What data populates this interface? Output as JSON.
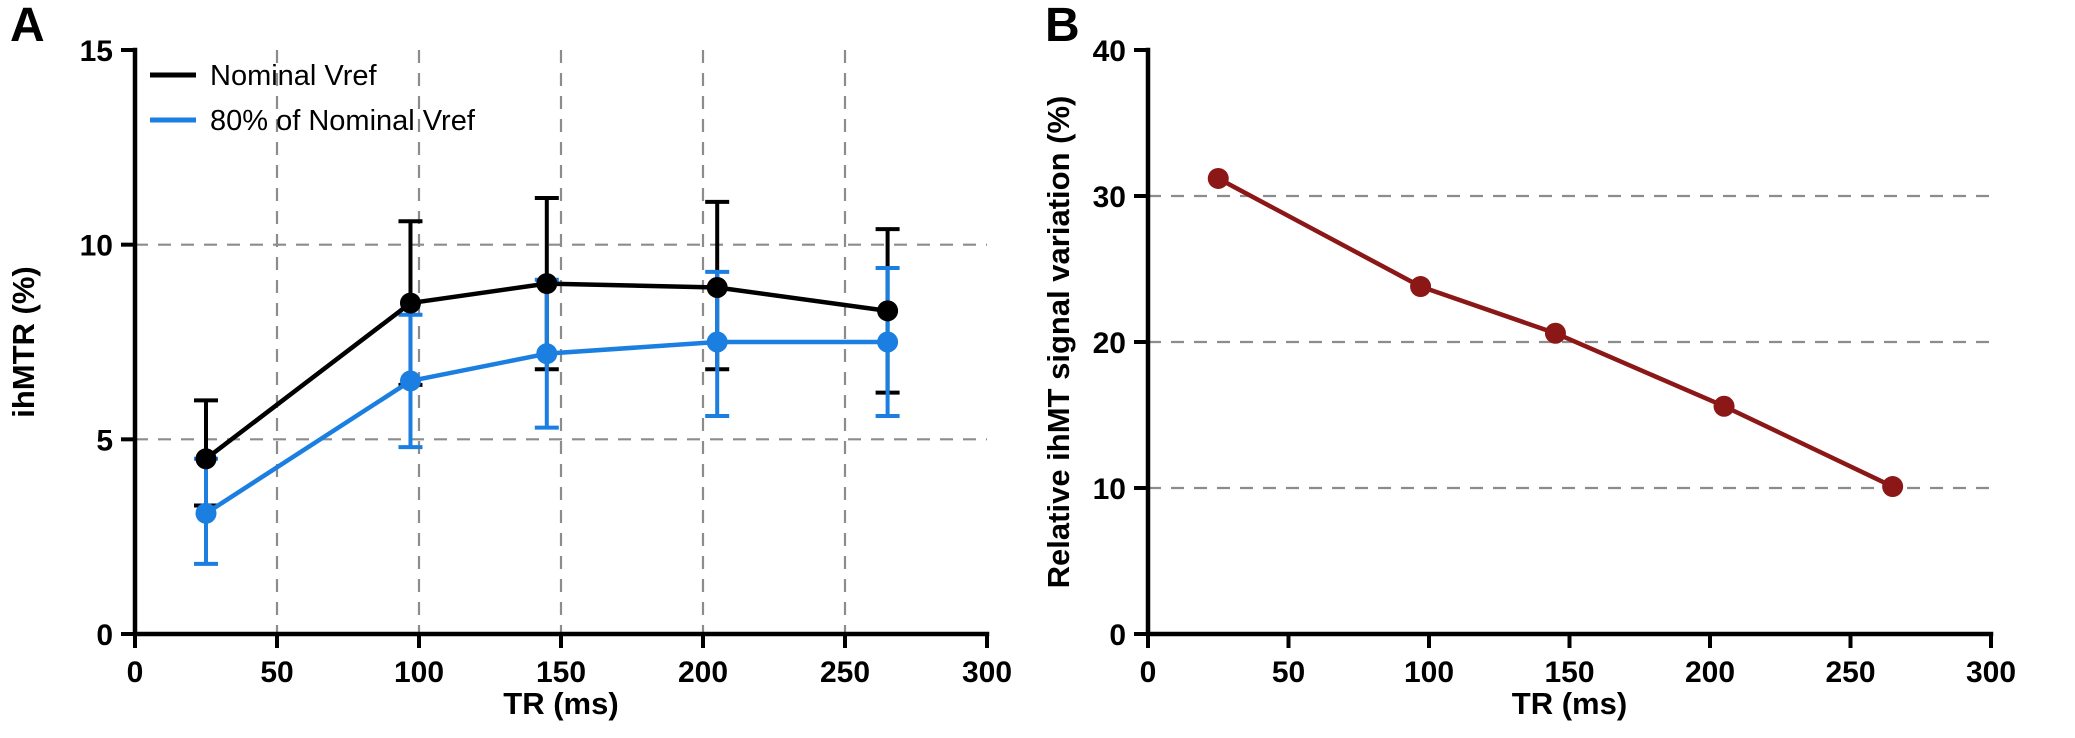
{
  "panels": [
    {
      "label": "A"
    },
    {
      "label": "B"
    }
  ],
  "colors": {
    "black_series": "#000000",
    "blue_series": "#1a7fe0",
    "dark_red_series": "#8b1717",
    "gridline": "#8c8c8c",
    "background": "#ffffff"
  },
  "chart_data": [
    {
      "type": "line",
      "title": "",
      "xlabel": "TR (ms)",
      "ylabel": "ihMTR (%)",
      "xlim": [
        0,
        300
      ],
      "ylim": [
        0,
        15
      ],
      "xticks": [
        0,
        50,
        100,
        150,
        200,
        250,
        300
      ],
      "yticks": [
        0,
        5,
        10,
        15
      ],
      "x_gridlines": [
        50,
        100,
        150,
        200,
        250
      ],
      "y_gridlines": [
        5,
        10
      ],
      "grid_style": "dashed",
      "legend": true,
      "legend_position": "top-left",
      "x": [
        25,
        97,
        145,
        205,
        265
      ],
      "series": [
        {
          "name": "Nominal Vref",
          "color": "#000000",
          "values": [
            4.5,
            8.5,
            9.0,
            8.9,
            8.3
          ],
          "err_up": [
            1.5,
            2.1,
            2.2,
            2.2,
            2.1
          ],
          "err_down": [
            1.2,
            2.1,
            2.2,
            2.1,
            2.1
          ]
        },
        {
          "name": "80% of Nominal Vref",
          "color": "#1a7fe0",
          "values": [
            3.1,
            6.5,
            7.2,
            7.5,
            7.5
          ],
          "err_up": [
            1.4,
            1.7,
            1.9,
            1.8,
            1.9
          ],
          "err_down": [
            1.3,
            1.7,
            1.9,
            1.9,
            1.9
          ]
        }
      ]
    },
    {
      "type": "line",
      "title": "",
      "xlabel": "TR (ms)",
      "ylabel": "Relative ihMT signal variation (%)",
      "xlim": [
        0,
        300
      ],
      "ylim": [
        0,
        40
      ],
      "xticks": [
        0,
        50,
        100,
        150,
        200,
        250,
        300
      ],
      "yticks": [
        0,
        10,
        20,
        30,
        40
      ],
      "x_gridlines": [],
      "y_gridlines": [
        10,
        20,
        30
      ],
      "grid_style": "dashed",
      "legend": false,
      "x": [
        25,
        97,
        145,
        205,
        265
      ],
      "series": [
        {
          "name": "Relative ihMT signal variation",
          "color": "#8b1717",
          "values": [
            31.2,
            23.8,
            20.6,
            15.6,
            10.1
          ]
        }
      ]
    }
  ]
}
